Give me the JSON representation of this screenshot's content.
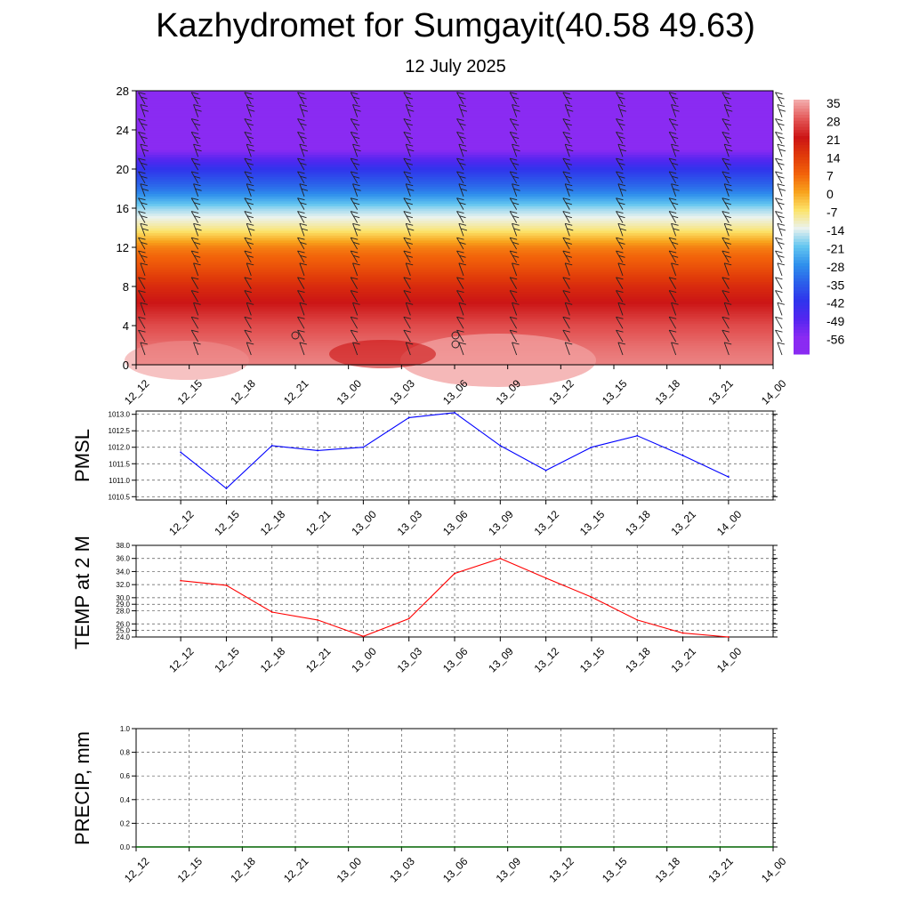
{
  "header": {
    "title": "Kazhydromet for Sumgayit(40.58 49.63)",
    "date": "12 July 2025"
  },
  "chart_data": [
    {
      "type": "heatmap",
      "name": "temperature-wind-profile",
      "xlabel": "",
      "ylabel": "",
      "x_tick_labels": [
        "12_12",
        "12_15",
        "12_18",
        "12_21",
        "13_00",
        "13_03",
        "13_06",
        "13_09",
        "13_12",
        "13_15",
        "13_18",
        "13_21",
        "14_00"
      ],
      "y_ticks": [
        0,
        4,
        8,
        12,
        16,
        20,
        24,
        28
      ],
      "ylim": [
        0,
        28
      ],
      "colorbar_labels": [
        "35",
        "28",
        "21",
        "14",
        "7",
        "0",
        "-7",
        "-14",
        "-21",
        "-28",
        "-35",
        "-42",
        "-49",
        "-56"
      ],
      "colorbar_colors": [
        "#f2a8a8",
        "#e35656",
        "#cc1515",
        "#e03a0a",
        "#f2620a",
        "#f8a21c",
        "#fce36a",
        "#eaf2ee",
        "#63c6f0",
        "#2f90ec",
        "#2b5fea",
        "#3034ec",
        "#5426f0",
        "#8a2bf2"
      ],
      "temperature_by_level_c": [
        [
          0,
          32
        ],
        [
          2,
          30
        ],
        [
          4,
          27
        ],
        [
          6,
          22
        ],
        [
          8,
          17
        ],
        [
          10,
          10
        ],
        [
          12,
          4
        ],
        [
          14,
          -9
        ],
        [
          16,
          -18
        ],
        [
          18,
          -32
        ],
        [
          20,
          -42
        ],
        [
          22,
          -56
        ],
        [
          24,
          -56
        ],
        [
          28,
          -56
        ]
      ],
      "wind_barbs": true,
      "grid": false
    },
    {
      "type": "line",
      "name": "pmsl",
      "ylabel": "PMSL",
      "categories": [
        "12_12",
        "12_15",
        "12_18",
        "12_21",
        "13_00",
        "13_03",
        "13_06",
        "13_09",
        "13_12",
        "13_15",
        "13_18",
        "13_21",
        "14_00"
      ],
      "values": [
        1011.85,
        1010.75,
        1012.05,
        1011.9,
        1012.0,
        1012.9,
        1013.05,
        1012.05,
        1011.3,
        1012.0,
        1012.35,
        1011.75,
        1011.1
      ],
      "y_tick_labels": [
        "1013.0",
        "1012.5",
        "1012.0",
        "1011.5",
        "1011.0",
        "1010.5"
      ],
      "ylim": [
        1010.4,
        1013.1
      ],
      "color": "#0000ff",
      "grid": true
    },
    {
      "type": "line",
      "name": "temp-2m",
      "ylabel": "TEMP at 2 M",
      "categories": [
        "12_12",
        "12_15",
        "12_18",
        "12_21",
        "13_00",
        "13_03",
        "13_06",
        "13_09",
        "13_12",
        "13_15",
        "13_18",
        "13_21",
        "14_00"
      ],
      "values": [
        32.6,
        31.9,
        27.8,
        26.6,
        24.1,
        26.8,
        33.7,
        36.0,
        33.0,
        30.1,
        26.6,
        24.6,
        24.0
      ],
      "y_tick_labels": [
        "38.0",
        "36.0",
        "34.0",
        "32.0",
        "30.0",
        "29.0",
        "28.0",
        "26.0",
        "25.0",
        "24.0"
      ],
      "ylim": [
        24.0,
        38.0
      ],
      "color": "#ff0000",
      "grid": true
    },
    {
      "type": "line",
      "name": "precip",
      "ylabel": "PRECIP, mm",
      "categories": [
        "12_12",
        "12_15",
        "12_18",
        "12_21",
        "13_00",
        "13_03",
        "13_06",
        "13_09",
        "13_12",
        "13_15",
        "13_18",
        "13_21",
        "14_00"
      ],
      "values": [
        0,
        0,
        0,
        0,
        0,
        0,
        0,
        0,
        0,
        0,
        0,
        0,
        0
      ],
      "y_tick_labels": [
        "1.0",
        "0.8",
        "0.6",
        "0.4",
        "0.2",
        "0.0"
      ],
      "ylim": [
        0.0,
        1.0
      ],
      "color": "#006400",
      "grid": true
    }
  ]
}
